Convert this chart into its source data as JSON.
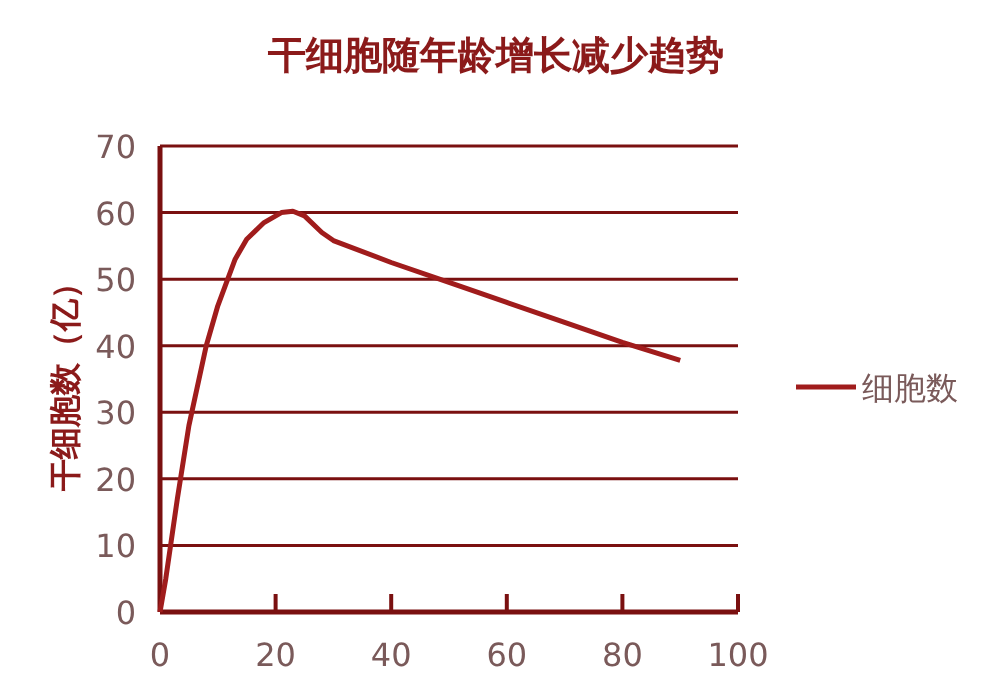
{
  "chart_data": {
    "type": "line",
    "title": "干细胞随年龄增长减少趋势",
    "ylabel": "干细胞数（亿）",
    "x": [
      0,
      1,
      3,
      5,
      8,
      10,
      13,
      15,
      18,
      21,
      23,
      25,
      28,
      30,
      40,
      50,
      60,
      70,
      80,
      90
    ],
    "series": [
      {
        "name": "细胞数",
        "color": "#a01c1c",
        "values": [
          0,
          5,
          17,
          28,
          40,
          46,
          53,
          56,
          58.5,
          60,
          60.2,
          59.5,
          57,
          55.8,
          52.5,
          49.5,
          46.5,
          43.5,
          40.5,
          37.8
        ]
      }
    ],
    "xlim": [
      0,
      100
    ],
    "ylim": [
      0,
      70
    ],
    "xticks": [
      0,
      20,
      40,
      60,
      80,
      100
    ],
    "yticks": [
      0,
      10,
      20,
      30,
      40,
      50,
      60,
      70
    ],
    "grid": "y",
    "legend": "right",
    "marker": "none",
    "line_style": "solid"
  }
}
